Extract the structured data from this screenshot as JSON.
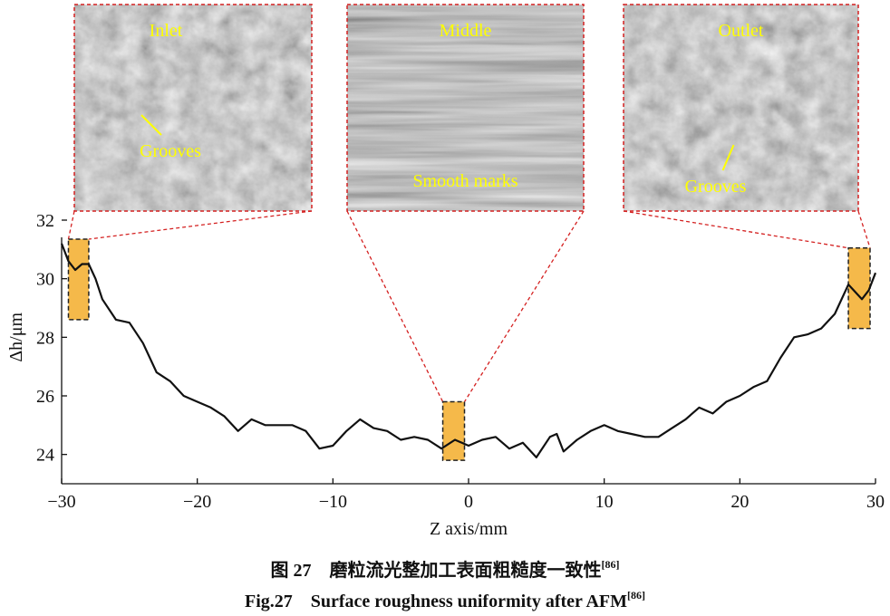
{
  "chart_data": {
    "type": "line",
    "x_label": "Z axis/mm",
    "y_label": "Δh/μm",
    "xlim": [
      -30,
      30
    ],
    "ylim": [
      23,
      32
    ],
    "xticks": [
      {
        "value": -30,
        "label": "−30"
      },
      {
        "value": -20,
        "label": "−20"
      },
      {
        "value": -10,
        "label": "−10"
      },
      0,
      10,
      20,
      30
    ],
    "yticks": [
      24,
      26,
      28,
      30,
      32
    ],
    "x": [
      -30,
      -29.5,
      -29,
      -28.5,
      -28,
      -27.5,
      -27,
      -26,
      -25,
      -24,
      -23,
      -22,
      -21,
      -20,
      -19,
      -18,
      -17,
      -16,
      -15,
      -14,
      -13,
      -12,
      -11,
      -10,
      -9,
      -8,
      -7,
      -6,
      -5,
      -4,
      -3,
      -2,
      -1,
      0,
      1,
      2,
      3,
      4,
      5,
      6,
      6.5,
      7,
      8,
      9,
      10,
      11,
      12,
      13,
      14,
      15,
      16,
      17,
      18,
      19,
      20,
      21,
      22,
      23,
      24,
      25,
      26,
      27,
      28,
      29,
      29.5,
      30
    ],
    "series": [
      {
        "color": "#111111",
        "values": [
          31.2,
          30.6,
          30.3,
          30.5,
          30.5,
          30.0,
          29.3,
          28.6,
          28.5,
          27.8,
          26.8,
          26.5,
          26.0,
          25.8,
          25.6,
          25.3,
          24.8,
          25.2,
          25.0,
          25.0,
          25.0,
          24.8,
          24.2,
          24.3,
          24.8,
          25.2,
          24.9,
          24.8,
          24.5,
          24.6,
          24.5,
          24.2,
          24.5,
          24.3,
          24.5,
          24.6,
          24.2,
          24.4,
          23.9,
          24.6,
          24.7,
          24.1,
          24.5,
          24.8,
          25.0,
          24.8,
          24.7,
          24.6,
          24.6,
          24.9,
          25.2,
          25.6,
          25.4,
          25.8,
          26.0,
          26.3,
          26.5,
          27.3,
          28.0,
          28.1,
          28.3,
          28.8,
          29.8,
          29.3,
          29.6,
          30.2
        ]
      }
    ],
    "highlight_color": "#f5b94a",
    "highlights": [
      {
        "xlim": [
          -29.5,
          -28
        ],
        "ylim": [
          28.6,
          31.35
        ]
      },
      {
        "xlim": [
          -1.9,
          -0.3
        ],
        "ylim": [
          23.8,
          25.8
        ]
      },
      {
        "xlim": [
          28,
          29.6
        ],
        "ylim": [
          28.3,
          31.05
        ]
      }
    ],
    "insets": [
      {
        "title": "Inlet",
        "annotation": "Grooves"
      },
      {
        "title": "Middle",
        "annotation": "Smooth marks"
      },
      {
        "title": "Outlet",
        "annotation": "Grooves"
      }
    ],
    "caption_zh": "图 27　磨粒流光整加工表面粗糙度一致性",
    "caption_zh_ref": "[86]",
    "caption_en": "Fig.27　Surface roughness uniformity after AFM",
    "caption_en_ref": "[86]"
  }
}
